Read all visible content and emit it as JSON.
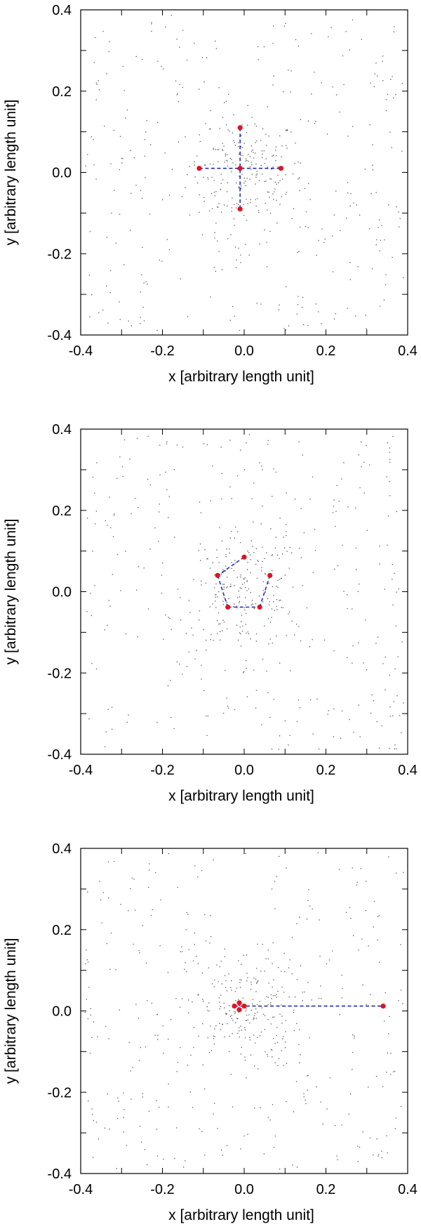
{
  "chart_data": [
    {
      "type": "scatter",
      "xlabel": "x [arbitrary length unit]",
      "ylabel": "y [arbitrary length unit]",
      "xlim": [
        -0.4,
        0.4
      ],
      "ylim": [
        -0.4,
        0.4
      ],
      "x_ticks": [
        "-0.4",
        "-0.2",
        "0.0",
        "0.2",
        "0.4"
      ],
      "y_ticks": [
        "0.4",
        "0.2",
        "0.0",
        "-0.2",
        "-0.4"
      ],
      "grid": false,
      "background_points": "sparse grey dots scattered over the square, denser near the centre",
      "red_points": [
        {
          "x": -0.01,
          "y": 0.11
        },
        {
          "x": -0.11,
          "y": 0.01
        },
        {
          "x": -0.01,
          "y": 0.01
        },
        {
          "x": 0.09,
          "y": 0.01
        },
        {
          "x": -0.01,
          "y": -0.09
        }
      ],
      "connections": [
        [
          0,
          4
        ],
        [
          1,
          3
        ]
      ],
      "colors": {
        "points": "#e0141e",
        "lines": "#1f2db8",
        "background": "#555555"
      }
    },
    {
      "type": "scatter",
      "xlabel": "x [arbitrary length unit]",
      "ylabel": "y [arbitrary length unit]",
      "xlim": [
        -0.4,
        0.4
      ],
      "ylim": [
        -0.4,
        0.4
      ],
      "x_ticks": [
        "-0.4",
        "-0.2",
        "0.0",
        "0.2",
        "0.4"
      ],
      "y_ticks": [
        "0.4",
        "0.2",
        "0.0",
        "-0.2",
        "-0.4"
      ],
      "grid": false,
      "background_points": "sparse grey dots scattered over the square, denser near the centre",
      "red_points": [
        {
          "x": 0.0,
          "y": 0.085
        },
        {
          "x": -0.065,
          "y": 0.04
        },
        {
          "x": -0.04,
          "y": -0.038
        },
        {
          "x": 0.038,
          "y": -0.038
        },
        {
          "x": 0.063,
          "y": 0.04
        }
      ],
      "connections": [
        [
          0,
          1
        ],
        [
          1,
          2
        ],
        [
          2,
          3
        ],
        [
          3,
          4
        ]
      ],
      "colors": {
        "points": "#e0141e",
        "lines": "#1f2db8",
        "background": "#555555"
      }
    },
    {
      "type": "scatter",
      "xlabel": "x [arbitrary length unit]",
      "ylabel": "y [arbitrary length unit]",
      "xlim": [
        -0.4,
        0.4
      ],
      "ylim": [
        -0.4,
        0.4
      ],
      "x_ticks": [
        "-0.4",
        "-0.2",
        "0.0",
        "0.2",
        "0.4"
      ],
      "y_ticks": [
        "0.4",
        "0.2",
        "0.0",
        "-0.2",
        "-0.4"
      ],
      "grid": false,
      "background_points": "sparse grey dots scattered over the square, denser near the centre",
      "red_points": [
        {
          "x": -0.012,
          "y": 0.02
        },
        {
          "x": -0.024,
          "y": 0.012
        },
        {
          "x": -0.012,
          "y": 0.003
        },
        {
          "x": 0.0,
          "y": 0.012
        },
        {
          "x": 0.34,
          "y": 0.012
        }
      ],
      "connections": [
        [
          0,
          2
        ],
        [
          1,
          4
        ]
      ],
      "colors": {
        "points": "#e0141e",
        "lines": "#1f2db8",
        "background": "#555555"
      }
    }
  ]
}
